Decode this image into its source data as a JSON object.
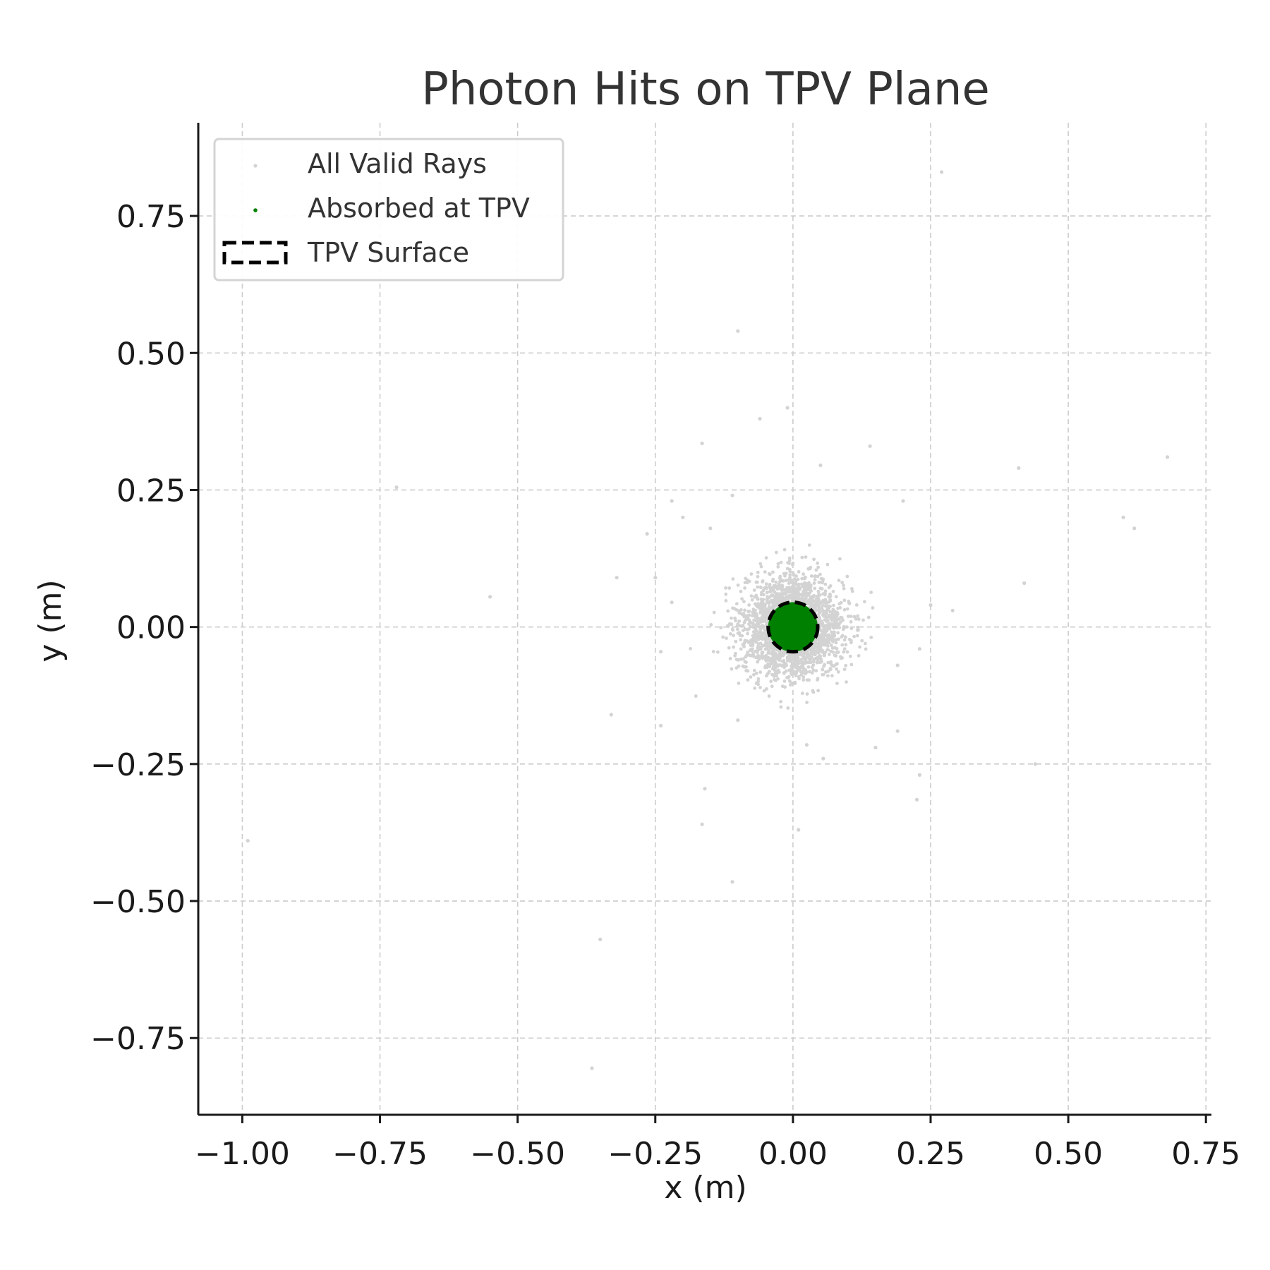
{
  "chart_data": {
    "type": "scatter",
    "title": "Photon Hits on TPV Plane",
    "xlabel": "x (m)",
    "ylabel": "y (m)",
    "xlim": [
      -1.08,
      0.76
    ],
    "ylim": [
      -0.89,
      0.92
    ],
    "xticks": [
      -1.0,
      -0.75,
      -0.5,
      -0.25,
      0.0,
      0.25,
      0.5,
      0.75
    ],
    "xtick_labels": [
      "−1.00",
      "−0.75",
      "−0.50",
      "−0.25",
      "0.00",
      "0.25",
      "0.50",
      "0.75"
    ],
    "yticks": [
      0.75,
      0.5,
      0.25,
      0.0,
      -0.25,
      -0.5,
      -0.75
    ],
    "ytick_labels": [
      "0.75",
      "0.50",
      "0.25",
      "0.00",
      "−0.25",
      "−0.50",
      "−0.75"
    ],
    "grid": true,
    "legend_position": "top-left",
    "series": [
      {
        "name": "All Valid Rays",
        "color": "#d3d3d3",
        "marker": "dot",
        "cluster": {
          "center": [
            0.0,
            0.0
          ],
          "spread_sd": 0.045
        },
        "outliers": [
          [
            0.27,
            0.83
          ],
          [
            -0.1,
            0.54
          ],
          [
            -0.01,
            0.4
          ],
          [
            -0.06,
            0.38
          ],
          [
            -0.165,
            0.335
          ],
          [
            0.14,
            0.33
          ],
          [
            0.68,
            0.31
          ],
          [
            0.41,
            0.29
          ],
          [
            0.05,
            0.295
          ],
          [
            -0.72,
            0.255
          ],
          [
            -0.11,
            0.24
          ],
          [
            -0.22,
            0.23
          ],
          [
            0.2,
            0.23
          ],
          [
            -0.2,
            0.2
          ],
          [
            0.6,
            0.2
          ],
          [
            0.62,
            0.18
          ],
          [
            -0.15,
            0.18
          ],
          [
            -0.265,
            0.17
          ],
          [
            -0.32,
            0.09
          ],
          [
            -0.25,
            0.09
          ],
          [
            0.42,
            0.08
          ],
          [
            -0.55,
            0.055
          ],
          [
            0.25,
            0.04
          ],
          [
            0.29,
            0.03
          ],
          [
            -0.22,
            0.045
          ],
          [
            -0.24,
            -0.045
          ],
          [
            0.23,
            -0.04
          ],
          [
            0.19,
            -0.07
          ],
          [
            -0.33,
            -0.16
          ],
          [
            -0.24,
            -0.18
          ],
          [
            0.19,
            -0.19
          ],
          [
            0.15,
            -0.22
          ],
          [
            0.025,
            -0.215
          ],
          [
            0.44,
            -0.25
          ],
          [
            0.23,
            -0.27
          ],
          [
            -0.16,
            -0.295
          ],
          [
            0.225,
            -0.315
          ],
          [
            -0.99,
            -0.39
          ],
          [
            -0.165,
            -0.36
          ],
          [
            0.01,
            -0.37
          ],
          [
            -0.11,
            -0.465
          ],
          [
            -0.35,
            -0.57
          ],
          [
            -0.365,
            -0.805
          ],
          [
            0.055,
            -0.24
          ],
          [
            -0.1,
            -0.17
          ]
        ]
      },
      {
        "name": "Absorbed at TPV",
        "color": "#008000",
        "marker": "dot",
        "region": {
          "center": [
            0.0,
            0.0
          ],
          "radius": 0.045
        }
      },
      {
        "name": "TPV Surface",
        "color": "#000000",
        "style": "dashed",
        "shape": "circle",
        "center": [
          0.0,
          0.0
        ],
        "radius": 0.045
      }
    ]
  }
}
